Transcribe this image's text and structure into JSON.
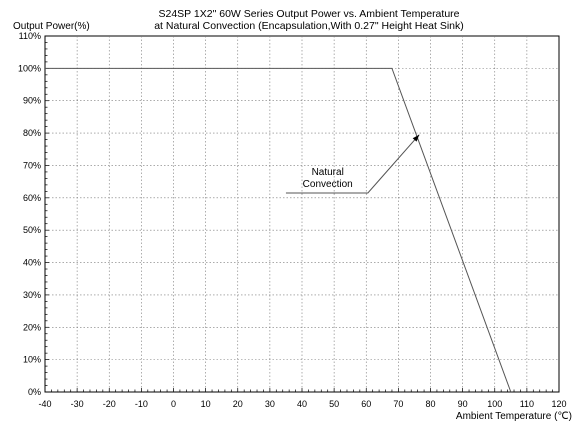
{
  "chart_data": {
    "type": "line",
    "title": "S24SP 1X2\" 60W Series Output Power vs. Ambient Temperature",
    "subtitle": "at Natural Convection (Encapsulation,With 0.27\" Height Heat Sink)",
    "xlabel": "Ambient Temperature (℃)",
    "ylabel": "Output Power(%)",
    "xlim": [
      -40,
      120
    ],
    "ylim": [
      0,
      110
    ],
    "x_ticks": [
      -40,
      -30,
      -20,
      -10,
      0,
      10,
      20,
      30,
      40,
      50,
      60,
      70,
      80,
      90,
      100,
      110,
      120
    ],
    "x_tick_labels": [
      "-40",
      "-30",
      "-20",
      "-10",
      "0",
      "10",
      "20",
      "30",
      "40",
      "50",
      "60",
      "70",
      "80",
      "90",
      "100",
      "110",
      "120"
    ],
    "y_ticks": [
      0,
      10,
      20,
      30,
      40,
      50,
      60,
      70,
      80,
      90,
      100,
      110
    ],
    "y_tick_labels": [
      "0%",
      "10%",
      "20%",
      "30%",
      "40%",
      "50%",
      "60%",
      "70%",
      "80%",
      "90%",
      "100%",
      "110%"
    ],
    "grid": true,
    "series": [
      {
        "x": [
          -40,
          68,
          105
        ],
        "y": [
          100,
          100,
          0
        ],
        "color": "#555555"
      }
    ],
    "annotations": [
      {
        "text_lines": [
          "Natural",
          "Convection"
        ],
        "text_x": 48,
        "text_y": 67,
        "line": [
          [
            35,
            61.5
          ],
          [
            60.5,
            61.5
          ],
          [
            76.5,
            79.5
          ]
        ]
      }
    ]
  }
}
